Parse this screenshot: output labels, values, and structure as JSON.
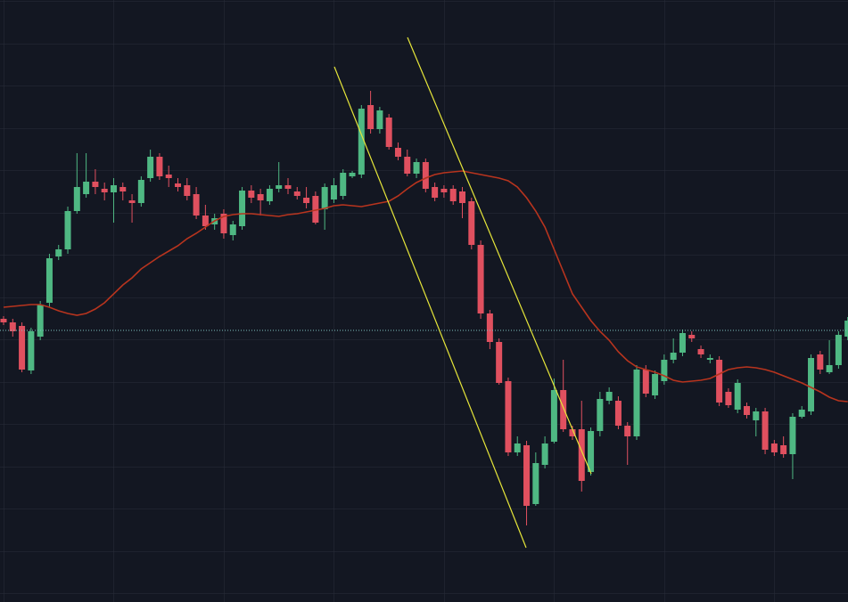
{
  "chart_data": {
    "type": "candlestick",
    "ylim": [
      0,
      676
    ],
    "up_color": "#4fb883",
    "down_color": "#e0505f",
    "open": [
      318,
      314,
      310,
      260,
      298,
      336,
      388,
      396,
      439,
      458,
      472,
      464,
      460,
      466,
      451,
      448,
      476,
      500,
      480,
      470,
      468,
      458,
      434,
      424,
      436,
      412,
      422,
      462,
      458,
      450,
      464,
      468,
      461,
      454,
      456,
      441,
      452,
      456,
      478,
      480,
      558,
      531,
      544,
      510,
      500,
      481,
      494,
      466,
      464,
      464,
      461,
      450,
      401,
      324,
      292,
      248,
      168,
      176,
      110,
      154,
      180,
      238,
      194,
      194,
      146,
      192,
      226,
      226,
      198,
      186,
      261,
      232,
      248,
      272,
      280,
      300,
      284,
      272,
      272,
      236,
      216,
      220,
      204,
      214,
      178,
      176,
      166,
      208,
      214,
      278,
      258,
      266,
      298
    ],
    "high": [
      321,
      318,
      314,
      308,
      338,
      391,
      401,
      444,
      504,
      504,
      486,
      471,
      476,
      471,
      458,
      478,
      508,
      504,
      490,
      476,
      476,
      466,
      446,
      436,
      441,
      428,
      466,
      468,
      464,
      468,
      494,
      476,
      466,
      466,
      461,
      470,
      476,
      486,
      484,
      558,
      574,
      556,
      548,
      516,
      508,
      498,
      498,
      471,
      468,
      468,
      466,
      454,
      406,
      328,
      296,
      252,
      186,
      181,
      168,
      186,
      251,
      272,
      198,
      226,
      196,
      236,
      241,
      231,
      202,
      266,
      266,
      260,
      278,
      296,
      306,
      304,
      288,
      278,
      276,
      240,
      250,
      224,
      218,
      218,
      182,
      186,
      212,
      220,
      278,
      282,
      294,
      304,
      320
    ],
    "low": [
      311,
      298,
      258,
      256,
      294,
      331,
      384,
      391,
      436,
      454,
      458,
      451,
      426,
      451,
      426,
      444,
      472,
      474,
      466,
      461,
      451,
      430,
      418,
      418,
      408,
      406,
      418,
      448,
      434,
      446,
      460,
      458,
      452,
      442,
      424,
      418,
      448,
      452,
      476,
      476,
      526,
      526,
      508,
      496,
      478,
      476,
      460,
      450,
      454,
      446,
      431,
      396,
      318,
      284,
      244,
      164,
      164,
      86,
      108,
      150,
      178,
      191,
      182,
      124,
      142,
      186,
      222,
      194,
      154,
      182,
      230,
      228,
      244,
      268,
      276,
      292,
      274,
      268,
      220,
      218,
      212,
      206,
      186,
      166,
      164,
      162,
      138,
      206,
      210,
      256,
      256,
      262,
      294
    ],
    "close": [
      314,
      304,
      261,
      304,
      334,
      386,
      396,
      439,
      466,
      472,
      466,
      460,
      468,
      461,
      448,
      474,
      500,
      478,
      476,
      466,
      456,
      434,
      422,
      431,
      414,
      424,
      462,
      454,
      451,
      464,
      468,
      464,
      456,
      448,
      426,
      466,
      468,
      482,
      482,
      554,
      531,
      552,
      511,
      500,
      481,
      494,
      464,
      454,
      460,
      450,
      448,
      401,
      324,
      292,
      246,
      168,
      178,
      108,
      156,
      178,
      238,
      194,
      186,
      136,
      192,
      228,
      236,
      198,
      186,
      261,
      234,
      256,
      272,
      280,
      302,
      296,
      278,
      274,
      224,
      221,
      246,
      210,
      214,
      171,
      168,
      166,
      208,
      216,
      274,
      261,
      266,
      300,
      316
    ],
    "ma": {
      "color": "#b8341e",
      "values": [
        331,
        332,
        333,
        334,
        334,
        331,
        327,
        324,
        322,
        324,
        329,
        336,
        346,
        356,
        364,
        374,
        381,
        388,
        394,
        400,
        408,
        414,
        421,
        428,
        433,
        435,
        436,
        436,
        435,
        434,
        433,
        435,
        436,
        438,
        440,
        442,
        445,
        446,
        445,
        444,
        446,
        448,
        450,
        456,
        464,
        471,
        476,
        480,
        482,
        483,
        484,
        482,
        480,
        478,
        476,
        473,
        466,
        454,
        439,
        421,
        396,
        371,
        346,
        331,
        316,
        304,
        294,
        281,
        271,
        264,
        261,
        258,
        254,
        249,
        247,
        248,
        249,
        251,
        256,
        261,
        263,
        264,
        263,
        261,
        258,
        254,
        250,
        246,
        241,
        236,
        230,
        226,
        225
      ]
    },
    "price_line": 305,
    "price_line_color": "#7fc4c0"
  }
}
